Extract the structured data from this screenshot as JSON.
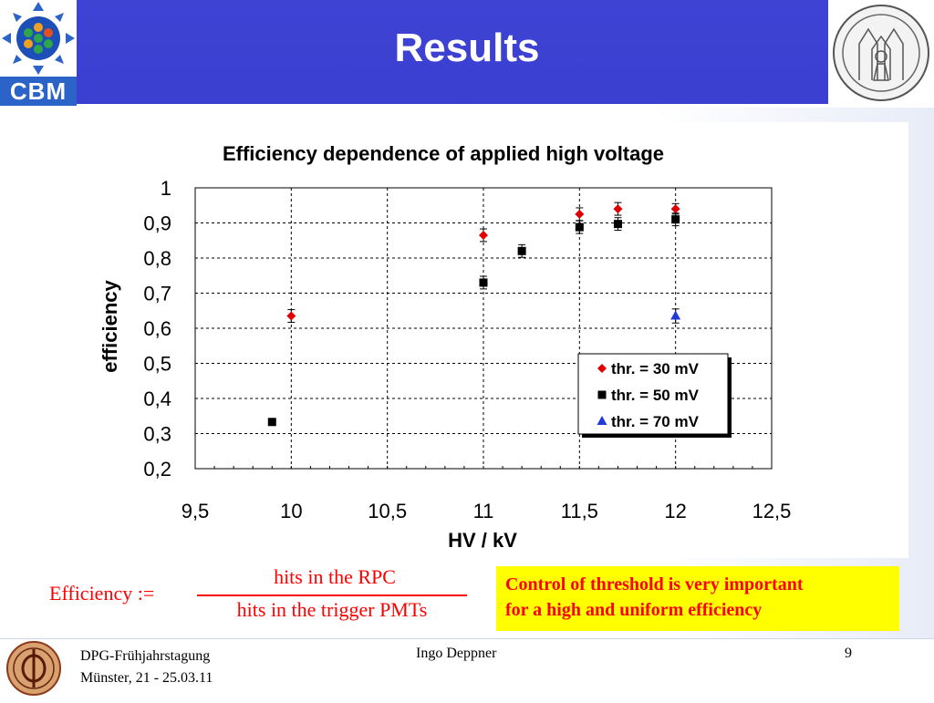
{
  "header": {
    "title": "Results",
    "logo_text": "CBM",
    "background": "#3f43d4"
  },
  "colors": {
    "series_30": "#e00000",
    "series_50": "#000000",
    "series_70": "#1f3bd8",
    "note_bg": "#ffff00",
    "note_text": "#ff0000"
  },
  "chart_data": {
    "type": "scatter",
    "title": "Efficiency dependence of applied high voltage",
    "xlabel": "HV / kV",
    "ylabel": "efficiency",
    "xlim": [
      9.5,
      12.5
    ],
    "ylim": [
      0.2,
      1.0
    ],
    "xticks": [
      9.5,
      10,
      10.5,
      11,
      11.5,
      12,
      12.5
    ],
    "xtick_labels": [
      "9,5",
      "10",
      "10,5",
      "11",
      "11,5",
      "12",
      "12,5"
    ],
    "yticks": [
      0.2,
      0.3,
      0.4,
      0.5,
      0.6,
      0.7,
      0.8,
      0.9,
      1.0
    ],
    "ytick_labels": [
      "0,2",
      "0,3",
      "0,4",
      "0,5",
      "0,6",
      "0,7",
      "0,8",
      "0,9",
      "1"
    ],
    "grid": true,
    "legend_position": "bottom-right",
    "series": [
      {
        "name": "thr. = 30 mV",
        "marker": "diamond",
        "color": "#e00000",
        "points": [
          {
            "x": 10.0,
            "y": 0.635,
            "err": 0.018
          },
          {
            "x": 11.0,
            "y": 0.865,
            "err": 0.018
          },
          {
            "x": 11.5,
            "y": 0.925,
            "err": 0.018
          },
          {
            "x": 11.7,
            "y": 0.94,
            "err": 0.018
          },
          {
            "x": 12.0,
            "y": 0.94,
            "err": 0.015
          }
        ]
      },
      {
        "name": "thr. = 50 mV",
        "marker": "square",
        "color": "#000000",
        "points": [
          {
            "x": 9.9,
            "y": 0.333,
            "err": 0
          },
          {
            "x": 11.0,
            "y": 0.73,
            "err": 0.018
          },
          {
            "x": 11.2,
            "y": 0.82,
            "err": 0.018
          },
          {
            "x": 11.5,
            "y": 0.888,
            "err": 0.018
          },
          {
            "x": 11.7,
            "y": 0.897,
            "err": 0.018
          },
          {
            "x": 12.0,
            "y": 0.91,
            "err": 0.018
          }
        ]
      },
      {
        "name": "thr. = 70 mV",
        "marker": "triangle",
        "color": "#1f3bd8",
        "points": [
          {
            "x": 12.0,
            "y": 0.635,
            "err": 0.02
          }
        ]
      }
    ]
  },
  "formula": {
    "label": "Efficiency :=",
    "numerator": "hits in the RPC",
    "denominator": "hits in the trigger PMTs"
  },
  "note": {
    "line1": "Control of threshold is very important",
    "line2": "for a high and uniform efficiency"
  },
  "footer": {
    "event": "DPG-Frühjahrstagung",
    "place_date": "Münster, 21 - 25.03.11",
    "author": "Ingo Deppner",
    "page": "9"
  }
}
